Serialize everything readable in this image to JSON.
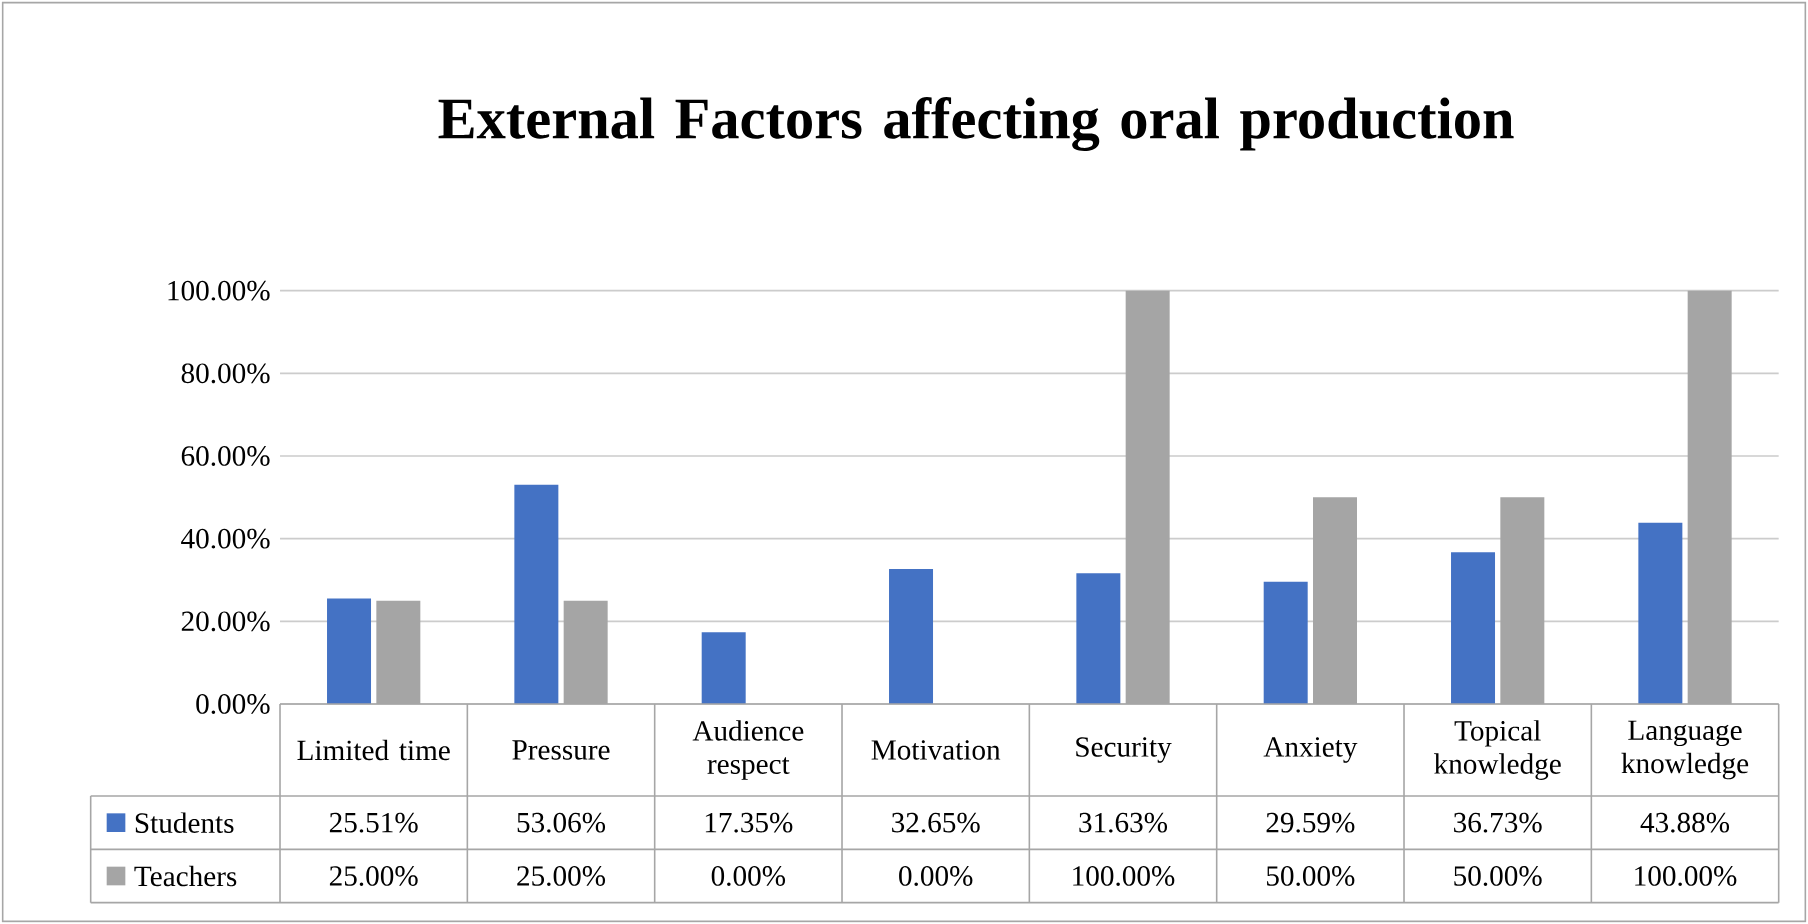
{
  "chart_data": {
    "type": "bar",
    "title": "External Factors affecting oral production",
    "categories": [
      "Limited time",
      "Pressure",
      "Audience respect",
      "Motivation",
      "Security",
      "Anxiety",
      "Topical knowledge",
      "Language knowledge"
    ],
    "series": [
      {
        "name": "Students",
        "color": "#4472c4",
        "values": [
          25.51,
          53.06,
          17.35,
          32.65,
          31.63,
          29.59,
          36.73,
          43.88
        ],
        "value_labels": [
          "25.51%",
          "53.06%",
          "17.35%",
          "32.65%",
          "31.63%",
          "29.59%",
          "36.73%",
          "43.88%"
        ]
      },
      {
        "name": "Teachers",
        "color": "#a5a5a5",
        "values": [
          25,
          25,
          0,
          0,
          100,
          50,
          50,
          100
        ],
        "value_labels": [
          "25.00%",
          "25.00%",
          "0.00%",
          "0.00%",
          "100.00%",
          "50.00%",
          "50.00%",
          "100.00%"
        ]
      }
    ],
    "ylim": [
      0,
      100
    ],
    "yticks": [
      {
        "value": 0,
        "label": "0.00%"
      },
      {
        "value": 20,
        "label": "20.00%"
      },
      {
        "value": 40,
        "label": "40.00%"
      },
      {
        "value": 60,
        "label": "60.00%"
      },
      {
        "value": 80,
        "label": "80.00%"
      },
      {
        "value": 100,
        "label": "100.00%"
      }
    ],
    "grid": "y",
    "legend": "bottom"
  }
}
